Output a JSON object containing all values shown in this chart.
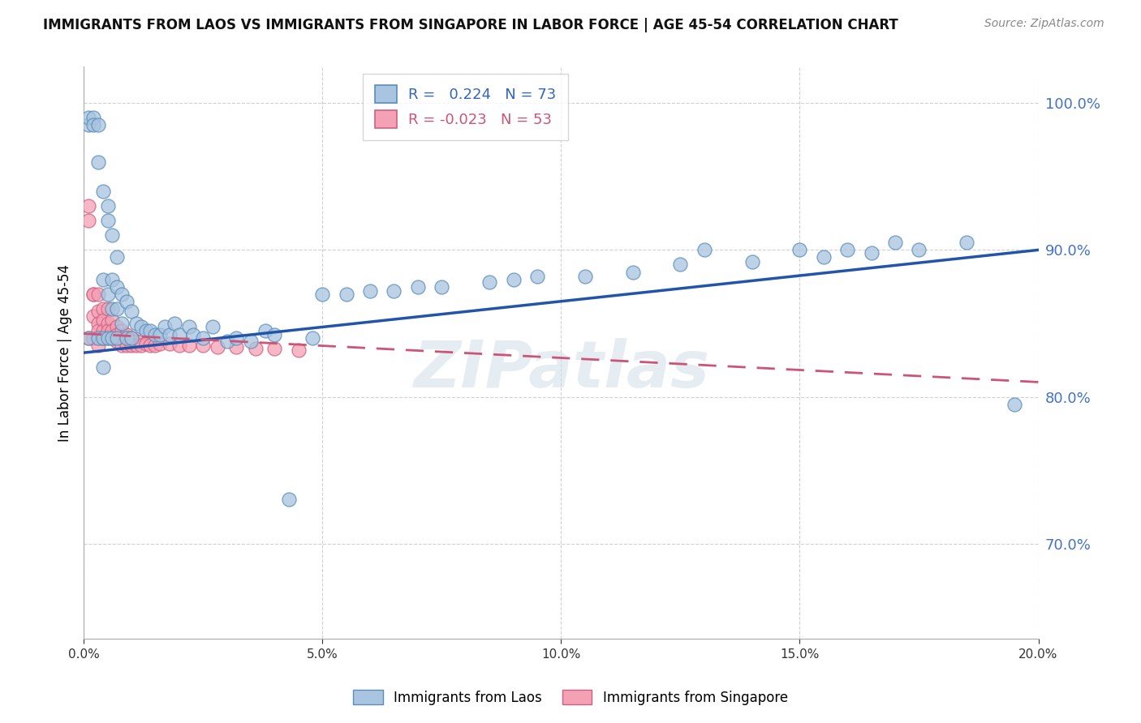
{
  "title": "IMMIGRANTS FROM LAOS VS IMMIGRANTS FROM SINGAPORE IN LABOR FORCE | AGE 45-54 CORRELATION CHART",
  "source": "Source: ZipAtlas.com",
  "ylabel": "In Labor Force | Age 45-54",
  "r_laos": 0.224,
  "n_laos": 73,
  "r_singapore": -0.023,
  "n_singapore": 53,
  "xlim": [
    0.0,
    0.2
  ],
  "ylim": [
    0.635,
    1.025
  ],
  "xticks": [
    0.0,
    0.05,
    0.1,
    0.15,
    0.2
  ],
  "yticks": [
    0.7,
    0.8,
    0.9,
    1.0
  ],
  "color_laos": "#a8c4e0",
  "color_laos_edge": "#5b8db8",
  "color_singapore": "#f4a0b5",
  "color_singapore_edge": "#d06080",
  "trendline_laos_color": "#2255aa",
  "trendline_singapore_color": "#cc5577",
  "watermark": "ZIPatlas",
  "laos_trendline_x": [
    0.0,
    0.2
  ],
  "laos_trendline_y": [
    0.83,
    0.9
  ],
  "singapore_trendline_x": [
    0.0,
    0.2
  ],
  "singapore_trendline_y": [
    0.843,
    0.81
  ],
  "laos_x": [
    0.001,
    0.001,
    0.001,
    0.002,
    0.002,
    0.003,
    0.003,
    0.003,
    0.004,
    0.004,
    0.004,
    0.004,
    0.005,
    0.005,
    0.005,
    0.005,
    0.006,
    0.006,
    0.006,
    0.006,
    0.007,
    0.007,
    0.007,
    0.007,
    0.008,
    0.008,
    0.009,
    0.009,
    0.01,
    0.01,
    0.011,
    0.012,
    0.013,
    0.014,
    0.015,
    0.016,
    0.017,
    0.018,
    0.019,
    0.02,
    0.022,
    0.023,
    0.025,
    0.027,
    0.03,
    0.032,
    0.035,
    0.038,
    0.04,
    0.043,
    0.048,
    0.055,
    0.06,
    0.065,
    0.075,
    0.085,
    0.095,
    0.105,
    0.115,
    0.125,
    0.14,
    0.155,
    0.165,
    0.175,
    0.185,
    0.05,
    0.07,
    0.09,
    0.13,
    0.15,
    0.16,
    0.17,
    0.195
  ],
  "laos_y": [
    0.985,
    0.99,
    0.84,
    0.99,
    0.985,
    0.985,
    0.96,
    0.84,
    0.94,
    0.88,
    0.84,
    0.82,
    0.93,
    0.92,
    0.87,
    0.84,
    0.91,
    0.88,
    0.86,
    0.84,
    0.895,
    0.875,
    0.86,
    0.84,
    0.87,
    0.85,
    0.865,
    0.84,
    0.858,
    0.84,
    0.85,
    0.848,
    0.845,
    0.845,
    0.842,
    0.842,
    0.848,
    0.842,
    0.85,
    0.842,
    0.848,
    0.842,
    0.84,
    0.848,
    0.838,
    0.84,
    0.838,
    0.845,
    0.842,
    0.73,
    0.84,
    0.87,
    0.872,
    0.872,
    0.875,
    0.878,
    0.882,
    0.882,
    0.885,
    0.89,
    0.892,
    0.895,
    0.898,
    0.9,
    0.905,
    0.87,
    0.875,
    0.88,
    0.9,
    0.9,
    0.9,
    0.905,
    0.795
  ],
  "singapore_x": [
    0.001,
    0.001,
    0.001,
    0.002,
    0.002,
    0.002,
    0.002,
    0.003,
    0.003,
    0.003,
    0.003,
    0.003,
    0.003,
    0.004,
    0.004,
    0.004,
    0.004,
    0.005,
    0.005,
    0.005,
    0.005,
    0.006,
    0.006,
    0.006,
    0.007,
    0.007,
    0.007,
    0.008,
    0.008,
    0.008,
    0.009,
    0.009,
    0.009,
    0.01,
    0.01,
    0.01,
    0.011,
    0.011,
    0.012,
    0.012,
    0.013,
    0.014,
    0.015,
    0.016,
    0.018,
    0.02,
    0.022,
    0.025,
    0.028,
    0.032,
    0.036,
    0.04,
    0.045
  ],
  "singapore_y": [
    0.93,
    0.92,
    0.84,
    0.87,
    0.87,
    0.855,
    0.84,
    0.87,
    0.858,
    0.85,
    0.845,
    0.84,
    0.835,
    0.86,
    0.852,
    0.845,
    0.84,
    0.86,
    0.85,
    0.845,
    0.84,
    0.852,
    0.845,
    0.84,
    0.848,
    0.842,
    0.838,
    0.845,
    0.84,
    0.835,
    0.842,
    0.84,
    0.835,
    0.84,
    0.838,
    0.835,
    0.838,
    0.835,
    0.838,
    0.835,
    0.836,
    0.835,
    0.835,
    0.836,
    0.836,
    0.835,
    0.835,
    0.835,
    0.834,
    0.834,
    0.833,
    0.833,
    0.832
  ]
}
